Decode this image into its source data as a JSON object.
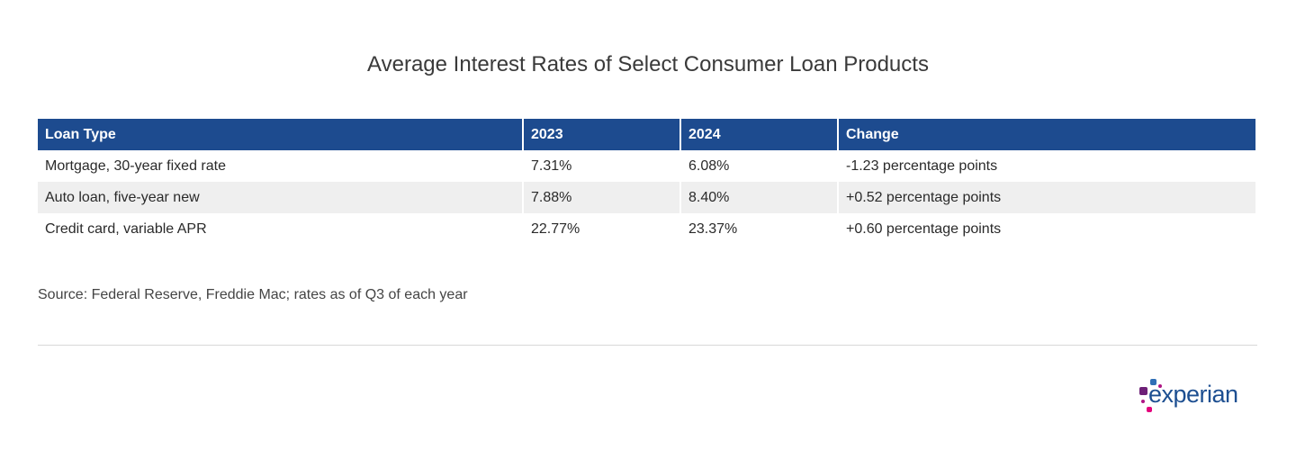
{
  "title": "Average Interest Rates of Select Consumer Loan Products",
  "table": {
    "headers": [
      "Loan Type",
      "2023",
      "2024",
      "Change"
    ],
    "rows": [
      [
        "Mortgage, 30-year fixed rate",
        "7.31%",
        "6.08%",
        "-1.23 percentage points"
      ],
      [
        "Auto loan, five-year new",
        "7.88%",
        "8.40%",
        "+0.52 percentage points"
      ],
      [
        "Credit card, variable APR",
        "22.77%",
        "23.37%",
        "+0.60 percentage points"
      ]
    ]
  },
  "source": "Source: Federal Reserve, Freddie Mac; rates as of Q3 of each year",
  "logo": {
    "text": "experian",
    "colors": {
      "blue": "#1d4f91",
      "purple": "#6d2077",
      "magenta": "#af1685",
      "pink": "#e4007c"
    }
  },
  "colors": {
    "header": "#1d4b8f",
    "alt_row": "#efefef"
  }
}
